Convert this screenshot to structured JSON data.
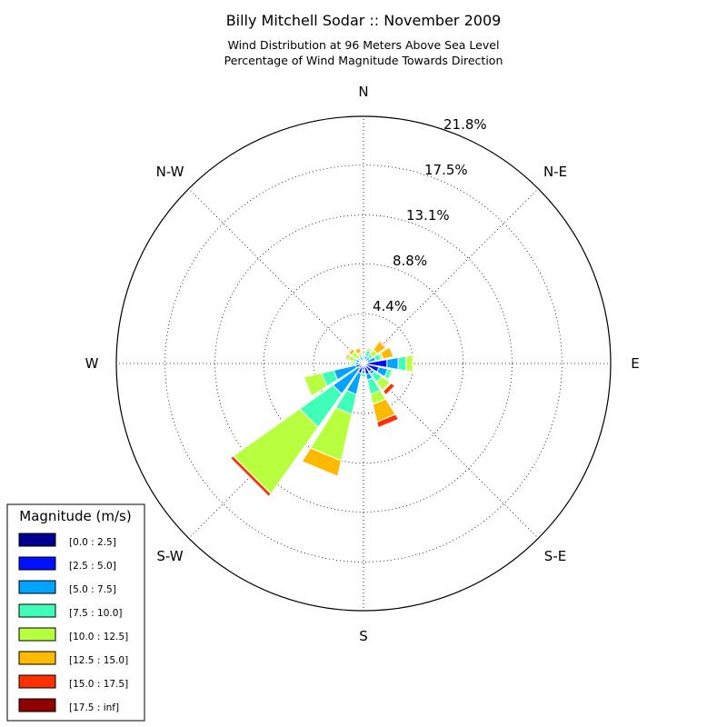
{
  "chart_data": {
    "type": "windrose",
    "title": "Billy Mitchell Sodar :: November 2009",
    "subtitle_lines": [
      "Wind Distribution at 96 Meters Above Sea Level",
      "Percentage of Wind Magnitude Towards Direction"
    ],
    "direction_labels": [
      "N",
      "N-E",
      "E",
      "S-E",
      "S",
      "S-W",
      "W",
      "N-W"
    ],
    "radial_ticks": [
      "4.4%",
      "8.8%",
      "13.1%",
      "17.5%",
      "21.8%"
    ],
    "radial_tick_values": [
      4.4,
      8.8,
      13.1,
      17.5,
      21.8
    ],
    "rmax": 21.8,
    "legend_title": "Magnitude (m/s)",
    "bins": [
      {
        "label": "[0.0 : 2.5]",
        "color": "#00008f"
      },
      {
        "label": "[2.5 : 5.0]",
        "color": "#0010ff"
      },
      {
        "label": "[5.0 : 7.5]",
        "color": "#00a4ff"
      },
      {
        "label": "[7.5 : 10.0]",
        "color": "#3fffb8"
      },
      {
        "label": "[10.0 : 12.5]",
        "color": "#b8ff3f"
      },
      {
        "label": "[12.5 : 15.0]",
        "color": "#ffb900"
      },
      {
        "label": "[15.0 : 17.5]",
        "color": "#ff3000"
      },
      {
        "label": "[17.5 : inf]",
        "color": "#8f0000"
      }
    ],
    "sectors": [
      {
        "direction": 0,
        "cumulative": [
          0.2,
          0.3,
          0.5,
          0.7,
          0.8,
          0.8,
          0.8,
          0.8
        ]
      },
      {
        "direction": 22.5,
        "cumulative": [
          0.2,
          0.4,
          0.7,
          1.2,
          1.4,
          1.4,
          1.4,
          1.4
        ]
      },
      {
        "direction": 45,
        "cumulative": [
          0.2,
          0.3,
          0.7,
          1.0,
          1.5,
          2.4,
          2.5,
          2.5
        ]
      },
      {
        "direction": 67.5,
        "cumulative": [
          0.2,
          0.4,
          1.1,
          1.6,
          1.8,
          2.7,
          2.7,
          2.7
        ]
      },
      {
        "direction": 90,
        "cumulative": [
          0.3,
          2.1,
          3.1,
          3.8,
          4.4,
          4.5,
          4.5,
          4.5
        ]
      },
      {
        "direction": 112.5,
        "cumulative": [
          0.2,
          1.4,
          2.2,
          2.6,
          2.7,
          2.7,
          2.7,
          2.7
        ]
      },
      {
        "direction": 135,
        "cumulative": [
          0.2,
          0.9,
          1.2,
          2.0,
          2.9,
          3.0,
          3.4,
          3.4
        ]
      },
      {
        "direction": 157.5,
        "cumulative": [
          0.2,
          1.0,
          1.5,
          2.8,
          3.7,
          5.3,
          5.8,
          5.8
        ]
      },
      {
        "direction": 180,
        "cumulative": [
          0.2,
          0.6,
          0.9,
          1.2,
          1.3,
          1.4,
          1.4,
          1.4
        ]
      },
      {
        "direction": 202.5,
        "cumulative": [
          0.2,
          0.9,
          2.8,
          4.6,
          8.8,
          10.2,
          10.2,
          10.2
        ]
      },
      {
        "direction": 225,
        "cumulative": [
          0.2,
          0.5,
          3.3,
          6.9,
          14.1,
          14.1,
          14.4,
          14.4
        ]
      },
      {
        "direction": 247.5,
        "cumulative": [
          0.2,
          0.7,
          2.7,
          3.8,
          5.4,
          5.4,
          5.4,
          5.4
        ]
      },
      {
        "direction": 270,
        "cumulative": [
          0.2,
          0.4,
          0.7,
          0.9,
          1.1,
          1.1,
          1.1,
          1.1
        ]
      },
      {
        "direction": 292.5,
        "cumulative": [
          0.2,
          0.4,
          0.7,
          0.9,
          1.4,
          1.6,
          1.7,
          1.7
        ]
      },
      {
        "direction": 315,
        "cumulative": [
          0.2,
          0.3,
          0.4,
          0.6,
          1.3,
          1.6,
          1.7,
          1.7
        ]
      },
      {
        "direction": 337.5,
        "cumulative": [
          0.2,
          0.3,
          0.6,
          0.8,
          1.0,
          1.4,
          1.4,
          1.4
        ]
      }
    ]
  }
}
